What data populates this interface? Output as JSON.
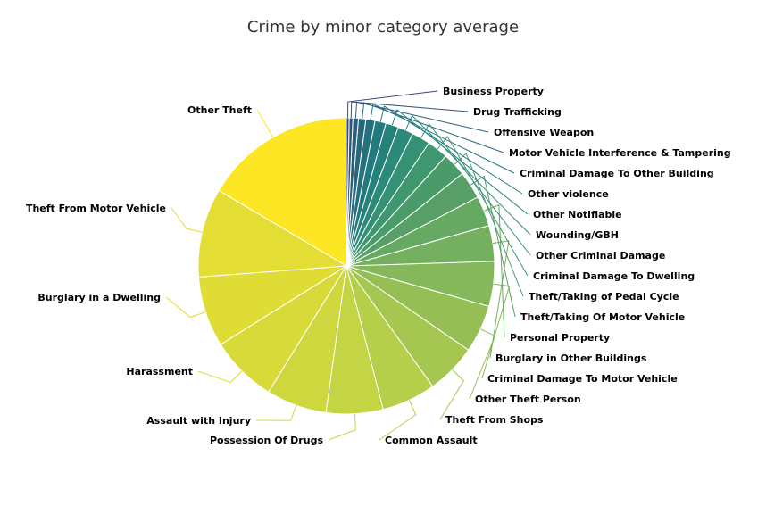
{
  "chart_data": {
    "type": "pie",
    "title": "Crime by minor category average",
    "slices": [
      {
        "label": "Other Theft",
        "value": 16.5,
        "color": "#fde725",
        "side": "left"
      },
      {
        "label": "Theft From Motor Vehicle",
        "value": 9.7,
        "color": "#e4dd34",
        "side": "left"
      },
      {
        "label": "Burglary in a Dwelling",
        "value": 7.7,
        "color": "#dfdc36",
        "side": "left"
      },
      {
        "label": "Harassment",
        "value": 7.3,
        "color": "#d8da3a",
        "side": "left"
      },
      {
        "label": "Assault with Injury",
        "value": 6.6,
        "color": "#cfd73f",
        "side": "left"
      },
      {
        "label": "Possession Of Drugs",
        "value": 6.2,
        "color": "#c3d445",
        "side": "left"
      },
      {
        "label": "Common Assault",
        "value": 5.9,
        "color": "#b5cf4a",
        "side": "right"
      },
      {
        "label": "Theft From Shops",
        "value": 5.5,
        "color": "#a5c650",
        "side": "right"
      },
      {
        "label": "Other Theft Person",
        "value": 5.2,
        "color": "#95bf55",
        "side": "right"
      },
      {
        "label": "Criminal Damage To Motor Vehicle",
        "value": 4.9,
        "color": "#84b85a",
        "side": "right"
      },
      {
        "label": "Burglary in Other Buildings",
        "value": 3.9,
        "color": "#74b05f",
        "side": "right"
      },
      {
        "label": "Personal Property",
        "value": 3.3,
        "color": "#65a962",
        "side": "right"
      },
      {
        "label": "Theft/Taking Of Motor Vehicle",
        "value": 3.0,
        "color": "#579f66",
        "side": "right"
      },
      {
        "label": "Theft/Taking of Pedal Cycle",
        "value": 2.6,
        "color": "#4a9b6a",
        "side": "right"
      },
      {
        "label": "Criminal Damage To Dwelling",
        "value": 2.3,
        "color": "#3f976f",
        "side": "right"
      },
      {
        "label": "Other Criminal Damage",
        "value": 2.0,
        "color": "#359174",
        "side": "right"
      },
      {
        "label": "Wounding/GBH",
        "value": 1.7,
        "color": "#2b8a79",
        "side": "right"
      },
      {
        "label": "Other Notifiable",
        "value": 1.4,
        "color": "#25827b",
        "side": "right"
      },
      {
        "label": "Other violence",
        "value": 1.2,
        "color": "#227a7c",
        "side": "right"
      },
      {
        "label": "Criminal Damage To Other Building",
        "value": 1.0,
        "color": "#24717d",
        "side": "right"
      },
      {
        "label": "Motor Vehicle Interference & Tampering",
        "value": 0.8,
        "color": "#28687d",
        "side": "right"
      },
      {
        "label": "Offensive Weapon",
        "value": 0.6,
        "color": "#2c5e7c",
        "side": "right"
      },
      {
        "label": "Drug Trafficking",
        "value": 0.4,
        "color": "#30547a",
        "side": "right"
      },
      {
        "label": "Business Property",
        "value": 0.3,
        "color": "#344a78",
        "side": "right"
      }
    ]
  }
}
